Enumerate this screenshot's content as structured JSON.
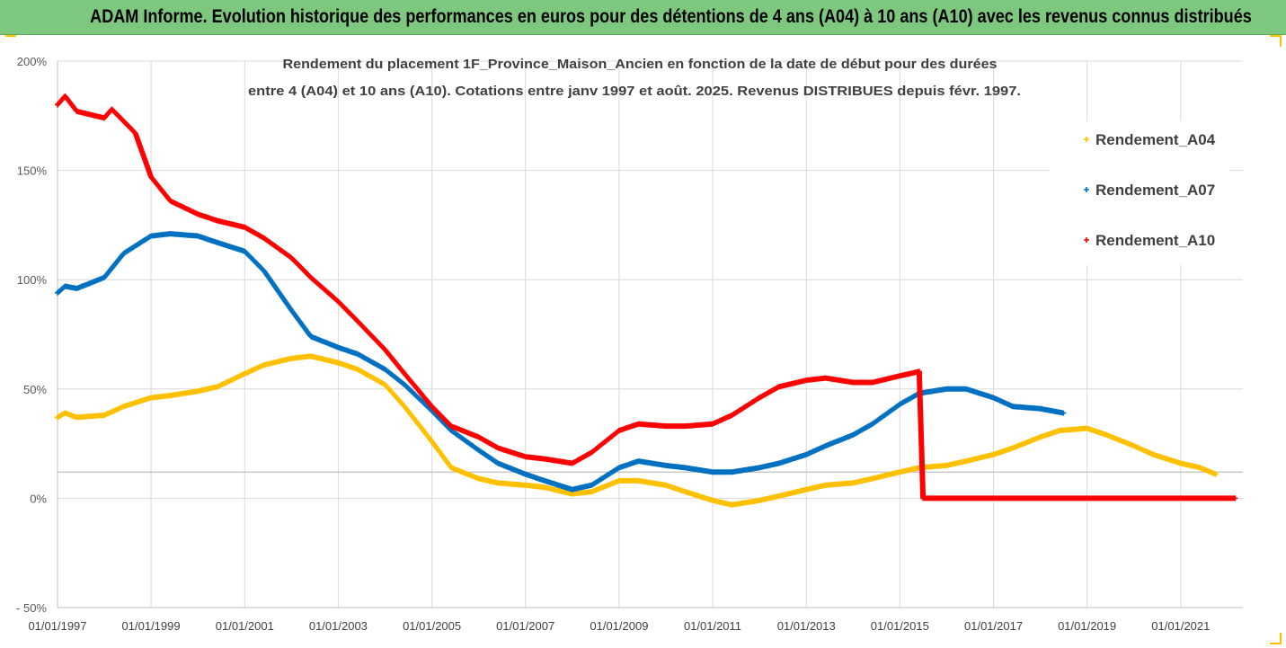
{
  "banner": {
    "title": "ADAM Informe. Evolution historique des performances en euros pour des détentions de 4 ans (A04) à 10 ans (A10) avec les revenus connus distribués"
  },
  "colors": {
    "banner_bg": "#7ec77e",
    "a04": "#ffc000",
    "a07": "#0070c0",
    "a10": "#ff0000",
    "grid": "#d9d9d9",
    "corner_marks": "#ffc000"
  },
  "chart_data": {
    "type": "scatter",
    "title_line1": "Rendement du placement 1F_Province_Maison_Ancien en fonction de la date de début pour des durées",
    "title_line2": "entre 4 (A04) et 10 ans (A10). Cotations entre janv 1997 et août. 2025. Revenus DISTRIBUES depuis févr. 1997.",
    "xlabel": "",
    "ylabel": "",
    "x_range": [
      "1997-01-01",
      "2022-05-01"
    ],
    "ylim": [
      -50,
      200
    ],
    "y_ticks": [
      200,
      150,
      100,
      50,
      0,
      -50
    ],
    "y_tick_labels": [
      "200%",
      "150%",
      "100%",
      "50%",
      "0%",
      "- 50%"
    ],
    "x_ticks": [
      "1997-01-01",
      "1999-01-01",
      "2001-01-01",
      "2003-01-01",
      "2005-01-01",
      "2007-01-01",
      "2009-01-01",
      "2011-01-01",
      "2013-01-01",
      "2015-01-01",
      "2017-01-01",
      "2019-01-01",
      "2021-01-01"
    ],
    "x_tick_labels": [
      "01/01/1997",
      "01/01/1999",
      "01/01/2001",
      "01/01/2003",
      "01/01/2005",
      "01/01/2007",
      "01/01/2009",
      "01/01/2011",
      "01/01/2013",
      "01/01/2015",
      "01/01/2017",
      "01/01/2019",
      "01/01/2021"
    ],
    "grid": true,
    "reference_line_y": 12,
    "legend_position": "right",
    "series": [
      {
        "name": "Rendement_A04",
        "color": "#ffc000",
        "points": [
          [
            "1997-01-01",
            37
          ],
          [
            "1997-03-01",
            39
          ],
          [
            "1997-06-01",
            37
          ],
          [
            "1998-01-01",
            38
          ],
          [
            "1998-06-01",
            42
          ],
          [
            "1999-01-01",
            46
          ],
          [
            "1999-06-01",
            47
          ],
          [
            "2000-01-01",
            49
          ],
          [
            "2000-06-01",
            51
          ],
          [
            "2001-01-01",
            57
          ],
          [
            "2001-06-01",
            61
          ],
          [
            "2002-01-01",
            64
          ],
          [
            "2002-06-01",
            65
          ],
          [
            "2003-01-01",
            62
          ],
          [
            "2003-06-01",
            59
          ],
          [
            "2004-01-01",
            52
          ],
          [
            "2004-06-01",
            42
          ],
          [
            "2005-01-01",
            26
          ],
          [
            "2005-06-01",
            14
          ],
          [
            "2006-01-01",
            9
          ],
          [
            "2006-06-01",
            7
          ],
          [
            "2007-01-01",
            6
          ],
          [
            "2007-06-01",
            5
          ],
          [
            "2008-01-01",
            2
          ],
          [
            "2008-06-01",
            3
          ],
          [
            "2009-01-01",
            8
          ],
          [
            "2009-06-01",
            8
          ],
          [
            "2010-01-01",
            6
          ],
          [
            "2010-06-01",
            3
          ],
          [
            "2011-01-01",
            -1
          ],
          [
            "2011-06-01",
            -3
          ],
          [
            "2012-01-01",
            -1
          ],
          [
            "2012-06-01",
            1
          ],
          [
            "2013-01-01",
            4
          ],
          [
            "2013-06-01",
            6
          ],
          [
            "2014-01-01",
            7
          ],
          [
            "2014-06-01",
            9
          ],
          [
            "2015-01-01",
            12
          ],
          [
            "2015-06-01",
            14
          ],
          [
            "2016-01-01",
            15
          ],
          [
            "2016-06-01",
            17
          ],
          [
            "2017-01-01",
            20
          ],
          [
            "2017-06-01",
            23
          ],
          [
            "2018-01-01",
            28
          ],
          [
            "2018-06-01",
            31
          ],
          [
            "2019-01-01",
            32
          ],
          [
            "2019-06-01",
            29
          ],
          [
            "2020-01-01",
            24
          ],
          [
            "2020-06-01",
            20
          ],
          [
            "2021-01-01",
            16
          ],
          [
            "2021-06-01",
            14
          ],
          [
            "2021-10-01",
            11
          ]
        ]
      },
      {
        "name": "Rendement_A07",
        "color": "#0070c0",
        "points": [
          [
            "1997-01-01",
            94
          ],
          [
            "1997-03-01",
            97
          ],
          [
            "1997-06-01",
            96
          ],
          [
            "1998-01-01",
            101
          ],
          [
            "1998-06-01",
            112
          ],
          [
            "1999-01-01",
            120
          ],
          [
            "1999-06-01",
            121
          ],
          [
            "2000-01-01",
            120
          ],
          [
            "2000-06-01",
            117
          ],
          [
            "2001-01-01",
            113
          ],
          [
            "2001-06-01",
            104
          ],
          [
            "2002-01-01",
            86
          ],
          [
            "2002-06-01",
            74
          ],
          [
            "2003-01-01",
            69
          ],
          [
            "2003-06-01",
            66
          ],
          [
            "2004-01-01",
            59
          ],
          [
            "2004-06-01",
            52
          ],
          [
            "2005-01-01",
            40
          ],
          [
            "2005-06-01",
            31
          ],
          [
            "2006-01-01",
            22
          ],
          [
            "2006-06-01",
            16
          ],
          [
            "2007-01-01",
            11
          ],
          [
            "2007-06-01",
            8
          ],
          [
            "2008-01-01",
            4
          ],
          [
            "2008-06-01",
            6
          ],
          [
            "2009-01-01",
            14
          ],
          [
            "2009-06-01",
            17
          ],
          [
            "2010-01-01",
            15
          ],
          [
            "2010-06-01",
            14
          ],
          [
            "2011-01-01",
            12
          ],
          [
            "2011-06-01",
            12
          ],
          [
            "2012-01-01",
            14
          ],
          [
            "2012-06-01",
            16
          ],
          [
            "2013-01-01",
            20
          ],
          [
            "2013-06-01",
            24
          ],
          [
            "2014-01-01",
            29
          ],
          [
            "2014-06-01",
            34
          ],
          [
            "2015-01-01",
            43
          ],
          [
            "2015-06-01",
            48
          ],
          [
            "2016-01-01",
            50
          ],
          [
            "2016-06-01",
            50
          ],
          [
            "2017-01-01",
            46
          ],
          [
            "2017-06-01",
            42
          ],
          [
            "2018-01-01",
            41
          ],
          [
            "2018-07-01",
            39
          ]
        ]
      },
      {
        "name": "Rendement_A10",
        "color": "#ff0000",
        "points": [
          [
            "1997-01-01",
            180
          ],
          [
            "1997-03-01",
            184
          ],
          [
            "1997-06-01",
            177
          ],
          [
            "1998-01-01",
            174
          ],
          [
            "1998-03-01",
            178
          ],
          [
            "1998-09-01",
            167
          ],
          [
            "1999-01-01",
            147
          ],
          [
            "1999-06-01",
            136
          ],
          [
            "2000-01-01",
            130
          ],
          [
            "2000-06-01",
            127
          ],
          [
            "2001-01-01",
            124
          ],
          [
            "2001-06-01",
            119
          ],
          [
            "2002-01-01",
            110
          ],
          [
            "2002-06-01",
            101
          ],
          [
            "2003-01-01",
            90
          ],
          [
            "2003-06-01",
            81
          ],
          [
            "2004-01-01",
            68
          ],
          [
            "2004-06-01",
            57
          ],
          [
            "2005-01-01",
            42
          ],
          [
            "2005-06-01",
            33
          ],
          [
            "2006-01-01",
            28
          ],
          [
            "2006-06-01",
            23
          ],
          [
            "2007-01-01",
            19
          ],
          [
            "2007-06-01",
            18
          ],
          [
            "2008-01-01",
            16
          ],
          [
            "2008-06-01",
            21
          ],
          [
            "2009-01-01",
            31
          ],
          [
            "2009-06-01",
            34
          ],
          [
            "2010-01-01",
            33
          ],
          [
            "2010-06-01",
            33
          ],
          [
            "2011-01-01",
            34
          ],
          [
            "2011-06-01",
            38
          ],
          [
            "2012-01-01",
            46
          ],
          [
            "2012-06-01",
            51
          ],
          [
            "2013-01-01",
            54
          ],
          [
            "2013-06-01",
            55
          ],
          [
            "2014-01-01",
            53
          ],
          [
            "2014-06-01",
            53
          ],
          [
            "2015-01-01",
            56
          ],
          [
            "2015-06-01",
            58
          ],
          [
            "2015-07-01",
            0
          ],
          [
            "2016-06-01",
            0
          ],
          [
            "2017-06-01",
            0
          ],
          [
            "2018-06-01",
            0
          ],
          [
            "2019-06-01",
            0
          ],
          [
            "2020-06-01",
            0
          ],
          [
            "2021-06-01",
            0
          ],
          [
            "2022-03-01",
            0
          ]
        ]
      }
    ]
  }
}
